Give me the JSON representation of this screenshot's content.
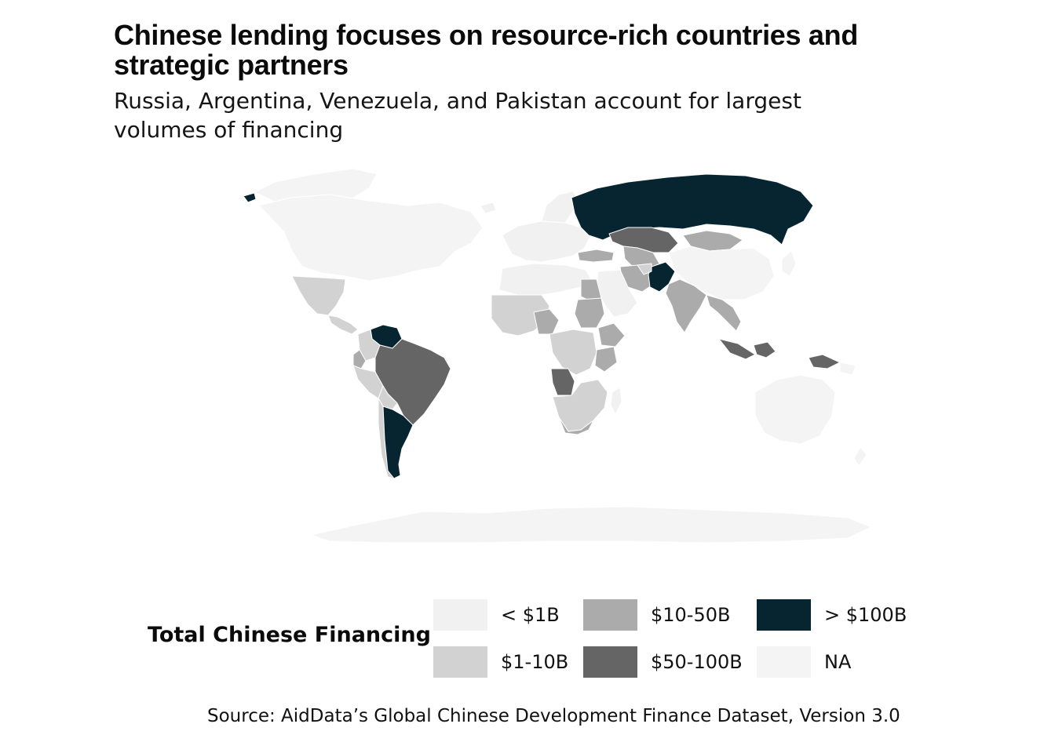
{
  "header": {
    "title": "Chinese lending focuses on resource-rich countries and strategic partners",
    "subtitle": "Russia, Argentina, Venezuela, and Pakistan account for largest volumes of financing"
  },
  "legend": {
    "title": "Total Chinese Financing",
    "items": [
      {
        "label": "< $1B",
        "color": "#f1f1f1"
      },
      {
        "label": "$1-10B",
        "color": "#d2d2d2"
      },
      {
        "label": "$10-50B",
        "color": "#ababab"
      },
      {
        "label": "$50-100B",
        "color": "#656565"
      },
      {
        "label": "> $100B",
        "color": "#062530"
      },
      {
        "label": "NA",
        "color": "#f4f4f4"
      }
    ]
  },
  "map": {
    "bin_colors": {
      "lt1": "#f1f1f1",
      "b1_10": "#d2d2d2",
      "b10_50": "#ababab",
      "b50_100": "#656565",
      "gt100": "#062530",
      "na": "#f4f4f4"
    },
    "regions": [
      {
        "name": "russia",
        "bin": "gt100"
      },
      {
        "name": "argentina",
        "bin": "gt100"
      },
      {
        "name": "venezuela",
        "bin": "gt100"
      },
      {
        "name": "pakistan",
        "bin": "gt100"
      },
      {
        "name": "brazil",
        "bin": "b50_100"
      },
      {
        "name": "kazakhstan",
        "bin": "b50_100"
      },
      {
        "name": "angola",
        "bin": "b50_100"
      },
      {
        "name": "indonesia",
        "bin": "b50_100"
      },
      {
        "name": "ecuador",
        "bin": "b10_50"
      },
      {
        "name": "bolivia",
        "bin": "b1_10"
      },
      {
        "name": "peru",
        "bin": "b1_10"
      },
      {
        "name": "mexico",
        "bin": "b1_10"
      },
      {
        "name": "india",
        "bin": "b10_50"
      },
      {
        "name": "ethiopia",
        "bin": "b10_50"
      },
      {
        "name": "sudan",
        "bin": "b10_50"
      },
      {
        "name": "kenya",
        "bin": "b10_50"
      },
      {
        "name": "nigeria",
        "bin": "b10_50"
      },
      {
        "name": "south-africa",
        "bin": "b10_50"
      },
      {
        "name": "mongolia",
        "bin": "b10_50"
      },
      {
        "name": "iran",
        "bin": "b10_50"
      },
      {
        "name": "turkey",
        "bin": "b10_50"
      },
      {
        "name": "egypt",
        "bin": "b10_50"
      }
    ]
  },
  "source": "Source: AidData’s Global Chinese Development Finance Dataset, Version 3.0"
}
